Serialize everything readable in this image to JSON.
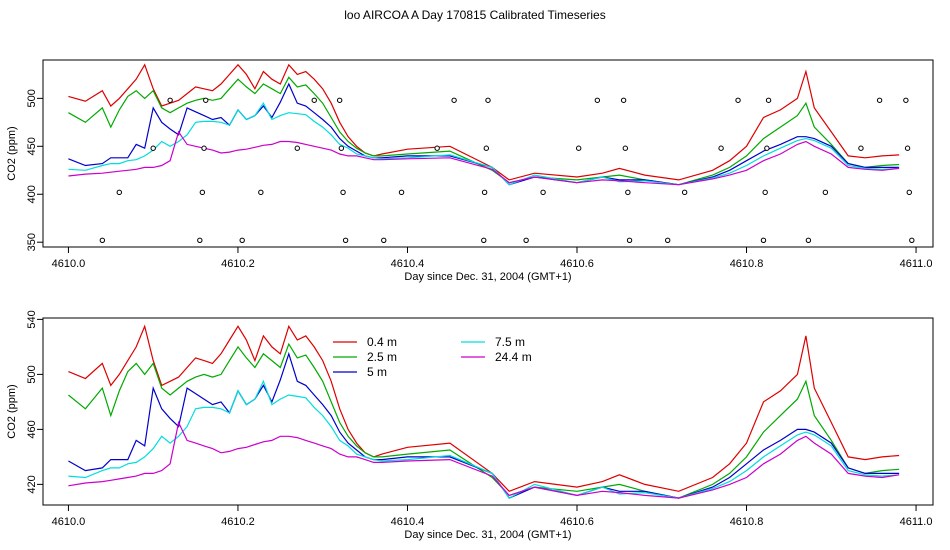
{
  "title": "loo AIRCOA A  Day 170815  Calibrated Timeseries",
  "colors": {
    "h04": "#dd0000",
    "h25": "#00aa00",
    "h5": "#0000cc",
    "h75": "#00dddd",
    "h244": "#cc00cc"
  },
  "chart_data": [
    {
      "type": "line",
      "xlabel": "Day since Dec. 31, 2004 (GMT+1)",
      "ylabel": "CO2 (ppm)",
      "xlim": [
        4609.97,
        4611.02
      ],
      "ylim": [
        345,
        540
      ],
      "xticks": [
        4610.0,
        4610.2,
        4610.4,
        4610.6,
        4610.8,
        4611.0
      ],
      "xtick_labels": [
        "4610.0",
        "4610.2",
        "4610.4",
        "4610.6",
        "4610.8",
        "4611.0"
      ],
      "yticks": [
        350,
        400,
        450,
        500
      ],
      "ytick_labels": [
        "350",
        "400",
        "450",
        "500"
      ],
      "series_ref": "shared",
      "flag_points": [
        {
          "x": 4610.04,
          "y": 352
        },
        {
          "x": 4610.06,
          "y": 402
        },
        {
          "x": 4610.1,
          "y": 448
        },
        {
          "x": 4610.12,
          "y": 498
        },
        {
          "x": 4610.155,
          "y": 352
        },
        {
          "x": 4610.158,
          "y": 402
        },
        {
          "x": 4610.16,
          "y": 448
        },
        {
          "x": 4610.162,
          "y": 498
        },
        {
          "x": 4610.205,
          "y": 352
        },
        {
          "x": 4610.227,
          "y": 402
        },
        {
          "x": 4610.27,
          "y": 448
        },
        {
          "x": 4610.29,
          "y": 498
        },
        {
          "x": 4610.32,
          "y": 498
        },
        {
          "x": 4610.322,
          "y": 448
        },
        {
          "x": 4610.324,
          "y": 402
        },
        {
          "x": 4610.327,
          "y": 352
        },
        {
          "x": 4610.372,
          "y": 352
        },
        {
          "x": 4610.393,
          "y": 402
        },
        {
          "x": 4610.435,
          "y": 448
        },
        {
          "x": 4610.455,
          "y": 498
        },
        {
          "x": 4610.49,
          "y": 352
        },
        {
          "x": 4610.491,
          "y": 402
        },
        {
          "x": 4610.493,
          "y": 448
        },
        {
          "x": 4610.495,
          "y": 498
        },
        {
          "x": 4610.54,
          "y": 352
        },
        {
          "x": 4610.56,
          "y": 402
        },
        {
          "x": 4610.602,
          "y": 448
        },
        {
          "x": 4610.624,
          "y": 498
        },
        {
          "x": 4610.655,
          "y": 498
        },
        {
          "x": 4610.657,
          "y": 448
        },
        {
          "x": 4610.66,
          "y": 402
        },
        {
          "x": 4610.662,
          "y": 352
        },
        {
          "x": 4610.707,
          "y": 352
        },
        {
          "x": 4610.727,
          "y": 402
        },
        {
          "x": 4610.77,
          "y": 448
        },
        {
          "x": 4610.79,
          "y": 498
        },
        {
          "x": 4610.82,
          "y": 352
        },
        {
          "x": 4610.822,
          "y": 402
        },
        {
          "x": 4610.824,
          "y": 448
        },
        {
          "x": 4610.826,
          "y": 498
        },
        {
          "x": 4610.873,
          "y": 352
        },
        {
          "x": 4610.893,
          "y": 402
        },
        {
          "x": 4610.935,
          "y": 448
        },
        {
          "x": 4610.957,
          "y": 498
        },
        {
          "x": 4610.988,
          "y": 498
        },
        {
          "x": 4610.99,
          "y": 448
        },
        {
          "x": 4610.992,
          "y": 402
        },
        {
          "x": 4610.995,
          "y": 352
        }
      ]
    },
    {
      "type": "line",
      "xlabel": "Day since Dec. 31, 2004 (GMT+1)",
      "ylabel": "CO2 (ppm)",
      "xlim": [
        4609.97,
        4611.02
      ],
      "ylim": [
        405,
        541
      ],
      "xticks": [
        4610.0,
        4610.2,
        4610.4,
        4610.6,
        4610.8,
        4611.0
      ],
      "xtick_labels": [
        "4610.0",
        "4610.2",
        "4610.4",
        "4610.6",
        "4610.8",
        "4611.0"
      ],
      "yticks": [
        420,
        460,
        500,
        540
      ],
      "ytick_labels": [
        "420",
        "460",
        "500",
        "540"
      ],
      "series_ref": "shared",
      "legend": {
        "position": "top-center",
        "entries": [
          "0.4 m",
          "2.5 m",
          "5 m",
          "7.5 m",
          "24.4 m"
        ]
      }
    }
  ],
  "series": [
    {
      "name": "0.4 m",
      "color_key": "h04",
      "x": [
        4610.0,
        4610.02,
        4610.04,
        4610.05,
        4610.06,
        4610.07,
        4610.08,
        4610.09,
        4610.1,
        4610.11,
        4610.12,
        4610.13,
        4610.14,
        4610.15,
        4610.16,
        4610.17,
        4610.18,
        4610.19,
        4610.2,
        4610.21,
        4610.22,
        4610.23,
        4610.24,
        4610.25,
        4610.26,
        4610.27,
        4610.28,
        4610.29,
        4610.3,
        4610.31,
        4610.32,
        4610.33,
        4610.34,
        4610.35,
        4610.36,
        4610.37,
        4610.4,
        4610.45,
        4610.5,
        4610.52,
        4610.55,
        4610.6,
        4610.63,
        4610.65,
        4610.68,
        4610.72,
        4610.76,
        4610.78,
        4610.8,
        4610.82,
        4610.84,
        4610.86,
        4610.87,
        4610.88,
        4610.9,
        4610.92,
        4610.94,
        4610.96,
        4610.98
      ],
      "y": [
        502,
        497,
        508,
        492,
        500,
        510,
        520,
        535,
        510,
        492,
        495,
        498,
        505,
        512,
        510,
        508,
        515,
        525,
        535,
        525,
        510,
        528,
        520,
        515,
        535,
        525,
        528,
        520,
        510,
        495,
        475,
        460,
        450,
        443,
        440,
        442,
        447,
        450,
        428,
        415,
        422,
        418,
        422,
        427,
        420,
        415,
        425,
        435,
        450,
        480,
        488,
        500,
        528,
        490,
        465,
        440,
        438,
        440,
        441
      ]
    },
    {
      "name": "2.5 m",
      "color_key": "h25",
      "x": [
        4610.0,
        4610.02,
        4610.04,
        4610.05,
        4610.06,
        4610.07,
        4610.08,
        4610.09,
        4610.1,
        4610.11,
        4610.12,
        4610.13,
        4610.14,
        4610.15,
        4610.16,
        4610.17,
        4610.18,
        4610.19,
        4610.2,
        4610.21,
        4610.22,
        4610.23,
        4610.24,
        4610.25,
        4610.26,
        4610.27,
        4610.28,
        4610.29,
        4610.3,
        4610.31,
        4610.32,
        4610.33,
        4610.34,
        4610.35,
        4610.36,
        4610.37,
        4610.4,
        4610.45,
        4610.5,
        4610.52,
        4610.55,
        4610.6,
        4610.63,
        4610.65,
        4610.68,
        4610.72,
        4610.76,
        4610.78,
        4610.8,
        4610.82,
        4610.84,
        4610.86,
        4610.87,
        4610.88,
        4610.9,
        4610.92,
        4610.94,
        4610.96,
        4610.98
      ],
      "y": [
        485,
        475,
        490,
        470,
        488,
        502,
        508,
        500,
        508,
        490,
        485,
        490,
        495,
        498,
        500,
        498,
        500,
        510,
        520,
        512,
        505,
        515,
        510,
        505,
        522,
        512,
        514,
        505,
        495,
        480,
        465,
        455,
        448,
        443,
        440,
        440,
        442,
        445,
        425,
        412,
        418,
        415,
        418,
        420,
        415,
        410,
        420,
        428,
        440,
        458,
        470,
        482,
        495,
        470,
        452,
        432,
        428,
        430,
        431
      ]
    },
    {
      "name": "5 m",
      "color_key": "h5",
      "x": [
        4610.0,
        4610.02,
        4610.04,
        4610.05,
        4610.06,
        4610.07,
        4610.08,
        4610.09,
        4610.1,
        4610.11,
        4610.12,
        4610.13,
        4610.14,
        4610.15,
        4610.16,
        4610.17,
        4610.18,
        4610.19,
        4610.2,
        4610.21,
        4610.22,
        4610.23,
        4610.24,
        4610.25,
        4610.26,
        4610.27,
        4610.28,
        4610.29,
        4610.3,
        4610.31,
        4610.32,
        4610.33,
        4610.34,
        4610.35,
        4610.36,
        4610.37,
        4610.4,
        4610.45,
        4610.5,
        4610.52,
        4610.55,
        4610.6,
        4610.63,
        4610.65,
        4610.68,
        4610.72,
        4610.76,
        4610.78,
        4610.8,
        4610.82,
        4610.84,
        4610.86,
        4610.87,
        4610.88,
        4610.9,
        4610.92,
        4610.94,
        4610.96,
        4610.98
      ],
      "y": [
        437,
        430,
        432,
        438,
        438,
        438,
        452,
        448,
        490,
        475,
        468,
        462,
        490,
        486,
        482,
        478,
        480,
        472,
        488,
        478,
        482,
        492,
        480,
        496,
        515,
        495,
        492,
        485,
        478,
        470,
        458,
        450,
        445,
        440,
        438,
        438,
        440,
        440,
        428,
        410,
        418,
        412,
        418,
        415,
        415,
        410,
        418,
        425,
        435,
        445,
        452,
        460,
        460,
        458,
        450,
        432,
        428,
        428,
        428
      ]
    },
    {
      "name": "7.5 m",
      "color_key": "h75",
      "x": [
        4610.0,
        4610.02,
        4610.04,
        4610.05,
        4610.06,
        4610.07,
        4610.08,
        4610.09,
        4610.1,
        4610.11,
        4610.12,
        4610.13,
        4610.14,
        4610.15,
        4610.16,
        4610.17,
        4610.18,
        4610.19,
        4610.2,
        4610.21,
        4610.22,
        4610.23,
        4610.24,
        4610.25,
        4610.26,
        4610.27,
        4610.28,
        4610.29,
        4610.3,
        4610.31,
        4610.32,
        4610.33,
        4610.34,
        4610.35,
        4610.36,
        4610.37,
        4610.4,
        4610.45,
        4610.5,
        4610.52,
        4610.55,
        4610.6,
        4610.63,
        4610.65,
        4610.68,
        4610.72,
        4610.76,
        4610.78,
        4610.8,
        4610.82,
        4610.84,
        4610.86,
        4610.87,
        4610.88,
        4610.9,
        4610.92,
        4610.94,
        4610.96,
        4610.98
      ],
      "y": [
        426,
        425,
        430,
        432,
        432,
        435,
        436,
        440,
        446,
        455,
        450,
        455,
        462,
        475,
        476,
        476,
        475,
        472,
        488,
        478,
        482,
        495,
        478,
        482,
        485,
        484,
        483,
        476,
        470,
        462,
        452,
        448,
        442,
        440,
        438,
        437,
        438,
        441,
        428,
        410,
        420,
        412,
        418,
        413,
        414,
        410,
        417,
        422,
        430,
        440,
        448,
        456,
        458,
        456,
        448,
        430,
        427,
        426,
        427
      ]
    },
    {
      "name": "24.4 m",
      "color_key": "h244",
      "x": [
        4610.0,
        4610.02,
        4610.04,
        4610.05,
        4610.06,
        4610.07,
        4610.08,
        4610.09,
        4610.1,
        4610.11,
        4610.12,
        4610.13,
        4610.14,
        4610.15,
        4610.16,
        4610.17,
        4610.18,
        4610.19,
        4610.2,
        4610.21,
        4610.22,
        4610.23,
        4610.24,
        4610.25,
        4610.26,
        4610.27,
        4610.28,
        4610.29,
        4610.3,
        4610.31,
        4610.32,
        4610.33,
        4610.34,
        4610.35,
        4610.36,
        4610.37,
        4610.4,
        4610.45,
        4610.5,
        4610.52,
        4610.55,
        4610.6,
        4610.63,
        4610.65,
        4610.68,
        4610.72,
        4610.76,
        4610.78,
        4610.8,
        4610.82,
        4610.84,
        4610.86,
        4610.87,
        4610.88,
        4610.9,
        4610.92,
        4610.94,
        4610.96,
        4610.98
      ],
      "y": [
        419,
        421,
        422,
        423,
        424,
        425,
        426,
        428,
        428,
        430,
        435,
        465,
        452,
        450,
        448,
        446,
        443,
        444,
        446,
        447,
        449,
        451,
        452,
        455,
        455,
        454,
        452,
        450,
        448,
        446,
        442,
        440,
        440,
        438,
        436,
        436,
        437,
        438,
        426,
        412,
        418,
        412,
        415,
        414,
        412,
        410,
        416,
        420,
        425,
        435,
        442,
        452,
        455,
        450,
        442,
        428,
        426,
        425,
        427
      ]
    }
  ]
}
